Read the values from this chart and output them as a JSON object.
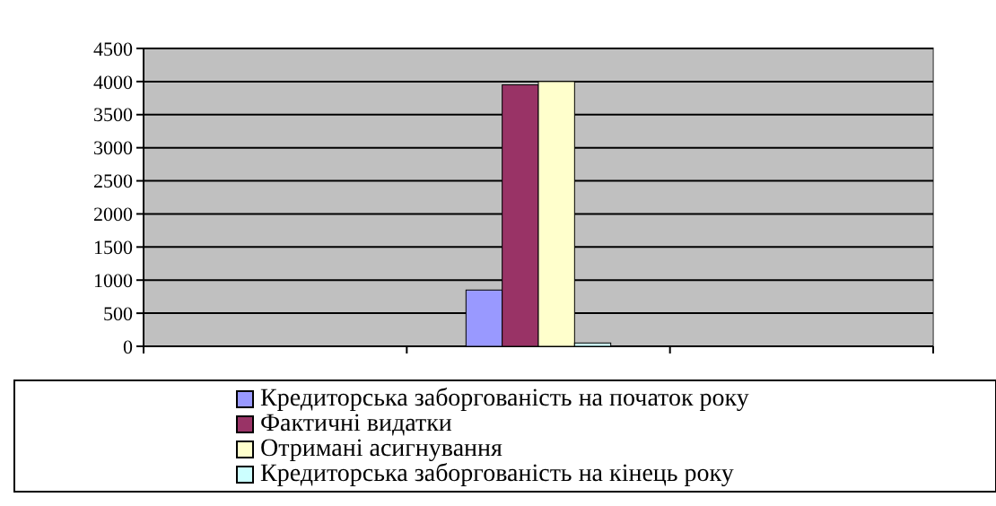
{
  "chart_data": {
    "type": "bar",
    "categories": [
      null,
      null,
      null
    ],
    "series": [
      {
        "name": "Кредиторська заборгованість на початок року",
        "color": "#9999ff",
        "values": [
          null,
          850,
          null
        ]
      },
      {
        "name": "Фактичні видатки",
        "color": "#993366",
        "values": [
          null,
          3950,
          null
        ]
      },
      {
        "name": "Отримані асигнування",
        "color": "#ffffcc",
        "values": [
          null,
          4000,
          null
        ]
      },
      {
        "name": "Кредиторська заборгованість на кінець року",
        "color": "#ccffff",
        "values": [
          null,
          50,
          null
        ]
      }
    ],
    "ylim": [
      0,
      4500
    ],
    "yticks": [
      0,
      500,
      1000,
      1500,
      2000,
      2500,
      3000,
      3500,
      4000,
      4500
    ],
    "grid": "y",
    "legend": "bottom"
  }
}
